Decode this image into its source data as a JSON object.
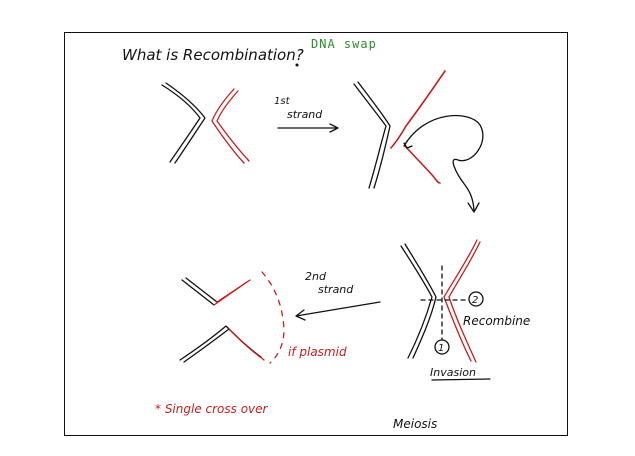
{
  "colors": {
    "ink": "#111111",
    "red_strand": "#c81e1e",
    "green_note": "#2e8b2e",
    "background": "#ffffff"
  },
  "title": {
    "question": "What is Recombination?",
    "note": "DNA swap"
  },
  "steps": {
    "first_strand_ordinal": "1st",
    "first_strand_word": "strand",
    "second_strand_ordinal": "2nd",
    "second_strand_word": "strand"
  },
  "labels": {
    "recombine_number": "2",
    "recombine": "Recombine",
    "invasion_number": "1",
    "invasion": "Invasion",
    "plasmid": "if plasmid",
    "single_cross_over": "* Single cross over",
    "meiosis": "Meiosis"
  }
}
